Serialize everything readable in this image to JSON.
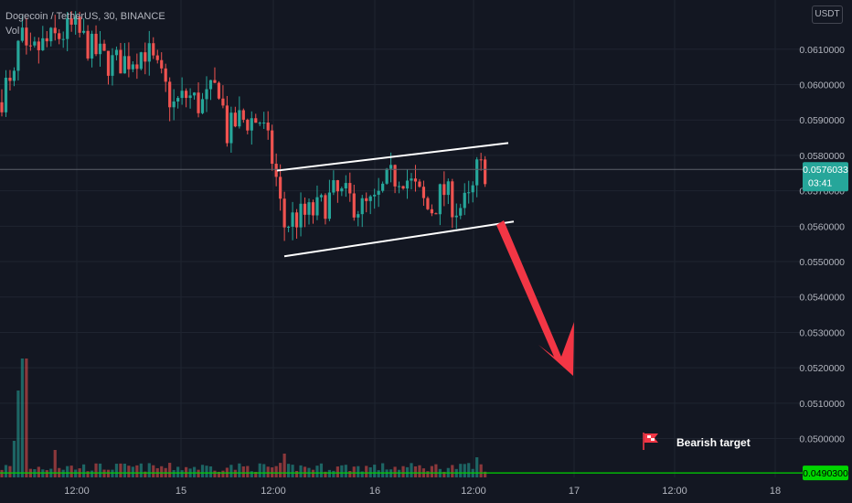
{
  "header": {
    "symbol_line": "Dogecoin / TetherUS, 30, BINANCE",
    "volume_label": "Vol"
  },
  "currency_button": "USDT",
  "colors": {
    "background": "#131722",
    "grid": "#1f2430",
    "up": "#26a69a",
    "down": "#ef5350",
    "axis_text": "#b2b5be",
    "price_badge": "#26a69a",
    "target_line": "#00d500",
    "target_badge": "#00d500",
    "channel": "#ffffff",
    "arrow": "#f23645"
  },
  "chart_data": {
    "type": "candlestick",
    "title": "Dogecoin / TetherUS, 30, BINANCE",
    "x_tick_labels": [
      "12:00",
      "15",
      "12:00",
      "16",
      "12:00",
      "17",
      "12:00",
      "18"
    ],
    "y_tick_labels": [
      "0.0610000",
      "0.0600000",
      "0.0590000",
      "0.0580000",
      "0.0570000",
      "0.0560000",
      "0.0550000",
      "0.0540000",
      "0.0530000",
      "0.0520000",
      "0.0510000",
      "0.0500000"
    ],
    "ylim": [
      0.04818,
      0.06239
    ],
    "ytick_values": [
      0.061,
      0.06,
      0.059,
      0.058,
      0.057,
      0.056,
      0.055,
      0.054,
      0.053,
      0.052,
      0.051,
      0.05
    ],
    "current_price": {
      "value": 0.0576033,
      "label": "0.0576033",
      "countdown": "03:41"
    },
    "target": {
      "value": 0.04903,
      "label": "0.0490300",
      "text": "Bearish target",
      "icon": "flag-icon"
    },
    "channel": {
      "upper": [
        [
          0.05757,
          0.05835
        ],
        [
          0.0583,
          0.05835
        ]
      ],
      "lower": [
        [
          0.05515,
          0.05613
        ],
        [
          0.0551,
          0.05613
        ]
      ]
    },
    "arrow_label": "bearish-arrow",
    "legend": "none",
    "grid": true
  }
}
